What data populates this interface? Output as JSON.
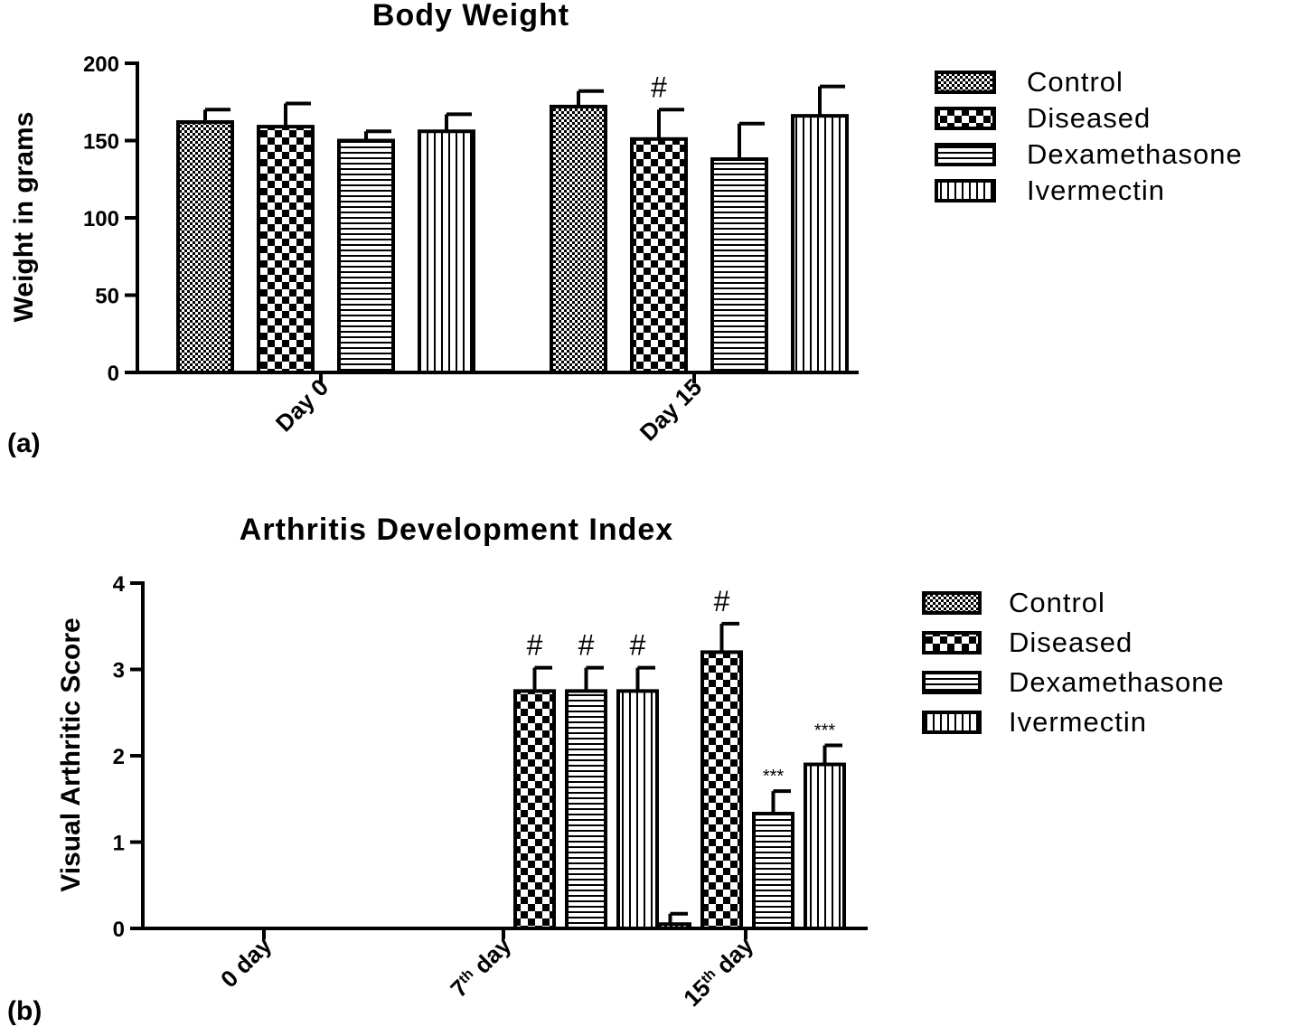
{
  "chart_data": [
    {
      "type": "bar",
      "panel_label": "(a)",
      "title": "Body Weight",
      "xlabel": "",
      "ylabel": "Weight in grams",
      "ylim": [
        0,
        200
      ],
      "yticks": [
        "0",
        "50",
        "100",
        "150",
        "200"
      ],
      "categories": [
        "Day 0",
        "Day 15"
      ],
      "legend_position": "top-right",
      "series": [
        {
          "name": "Control",
          "pattern": "fine-check",
          "values": [
            162,
            172
          ],
          "errors": [
            8,
            10
          ],
          "annotations": [
            "",
            ""
          ]
        },
        {
          "name": "Diseased",
          "pattern": "checker",
          "values": [
            159,
            151
          ],
          "errors": [
            15,
            19
          ],
          "annotations": [
            "",
            "#"
          ]
        },
        {
          "name": "Dexamethasone",
          "pattern": "horizontal-stripes",
          "values": [
            150,
            138
          ],
          "errors": [
            6,
            23
          ],
          "annotations": [
            "",
            ""
          ]
        },
        {
          "name": "Ivermectin",
          "pattern": "vertical-stripes",
          "values": [
            156,
            166
          ],
          "errors": [
            11,
            19
          ],
          "annotations": [
            "",
            ""
          ]
        }
      ]
    },
    {
      "type": "bar",
      "panel_label": "(b)",
      "title": "Arthritis Development Index",
      "xlabel": "",
      "ylabel": "Visual Arthritic Score",
      "ylim": [
        0,
        4
      ],
      "yticks": [
        "0",
        "1",
        "2",
        "3",
        "4"
      ],
      "categories": [
        {
          "base": "0 day",
          "sup": ""
        },
        {
          "base": "7",
          "sup": "th",
          "rest": " day"
        },
        {
          "base": "15",
          "sup": "th",
          "rest": " day"
        }
      ],
      "legend_position": "right",
      "series": [
        {
          "name": "Control",
          "pattern": "fine-check",
          "values": [
            0,
            0,
            0.05
          ],
          "errors": [
            0,
            0,
            0.12
          ],
          "annotations": [
            "",
            "",
            ""
          ]
        },
        {
          "name": "Diseased",
          "pattern": "checker",
          "values": [
            0,
            2.75,
            3.2
          ],
          "errors": [
            0,
            0.27,
            0.33
          ],
          "annotations": [
            "",
            "#",
            "#"
          ]
        },
        {
          "name": "Dexamethasone",
          "pattern": "horizontal-stripes",
          "values": [
            0,
            2.75,
            1.33
          ],
          "errors": [
            0,
            0.27,
            0.26
          ],
          "annotations": [
            "",
            "#",
            "***"
          ]
        },
        {
          "name": "Ivermectin",
          "pattern": "vertical-stripes",
          "values": [
            0,
            2.75,
            1.9
          ],
          "errors": [
            0,
            0.27,
            0.22
          ],
          "annotations": [
            "",
            "#",
            "***"
          ]
        }
      ]
    }
  ]
}
